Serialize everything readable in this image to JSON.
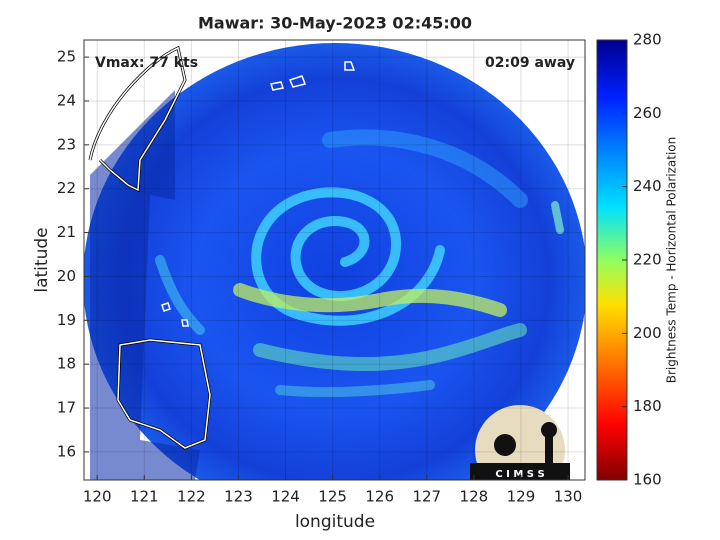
{
  "map": {
    "title": "Mawar: 30-May-2023 02:45:00",
    "annotation_left": "Vmax: 77 kts",
    "annotation_right": "02:09 away",
    "xlabel": "longitude",
    "ylabel": "latitude",
    "xlim": [
      119.72,
      130.36
    ],
    "ylim": [
      15.36,
      25.39
    ],
    "xticks": [
      120,
      121,
      122,
      123,
      124,
      125,
      126,
      127,
      128,
      129,
      130
    ],
    "yticks": [
      16,
      17,
      18,
      19,
      20,
      21,
      22,
      23,
      24,
      25
    ],
    "grid": true,
    "colorbar": {
      "label": "Brightness Temp - Horizontal Polarization",
      "lim": [
        160,
        280
      ],
      "ticks": [
        160,
        180,
        200,
        220,
        240,
        260,
        280
      ]
    },
    "logo_text": "C I M S S"
  }
}
